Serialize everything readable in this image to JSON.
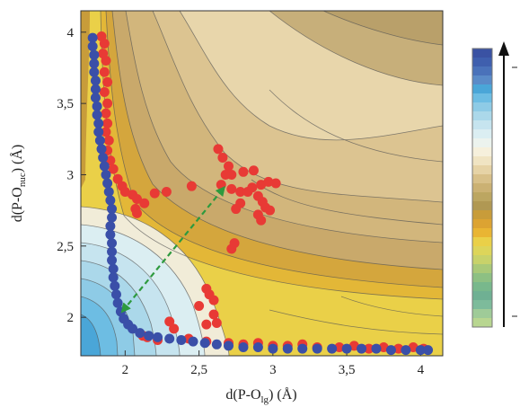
{
  "chart_data": {
    "type": "scatter",
    "title": "",
    "xlabel": "d(P-O",
    "xlabel_sub": "lg",
    "xlabel_suffix": ") (Å)",
    "ylabel": "d(P-O",
    "ylabel_sub": "nuc",
    "ylabel_suffix": ") (Å)",
    "xlim": [
      1.7,
      4.15
    ],
    "ylim": [
      1.73,
      4.15
    ],
    "x_ticks": [
      2,
      2.5,
      3,
      3.5,
      4
    ],
    "x_tick_labels": [
      "2",
      "2,5",
      "3",
      "3,5",
      "4"
    ],
    "y_ticks": [
      2,
      2.5,
      3,
      3.5,
      4
    ],
    "y_tick_labels": [
      "2",
      "2,5",
      "3",
      "3,5",
      "4"
    ],
    "background": "contour energy surface",
    "colorbar": {
      "colors": [
        "#3a52a3",
        "#3f5fae",
        "#4a72ba",
        "#5a8bc8",
        "#4aa6d8",
        "#6dbde3",
        "#8ecbe6",
        "#abd8ea",
        "#c6e4ef",
        "#dbeef2",
        "#ecf3ee",
        "#f6f0dc",
        "#f0e4c3",
        "#e6d3a6",
        "#d8c089",
        "#cbb173",
        "#bca661",
        "#b09853",
        "#c89c3a",
        "#dca332",
        "#e9b533",
        "#ead048",
        "#ddd55a",
        "#c8d26a",
        "#a9c978",
        "#8dc083",
        "#78b88c",
        "#6fb093",
        "#7dbb9b",
        "#9fcb98",
        "#b8d690"
      ]
    },
    "series": [
      {
        "name": "",
        "color": "#e83a35",
        "points": [
          [
            1.84,
            3.97
          ],
          [
            1.86,
            3.92
          ],
          [
            1.85,
            3.85
          ],
          [
            1.87,
            3.8
          ],
          [
            1.86,
            3.72
          ],
          [
            1.88,
            3.65
          ],
          [
            1.86,
            3.58
          ],
          [
            1.88,
            3.5
          ],
          [
            1.87,
            3.43
          ],
          [
            1.88,
            3.36
          ],
          [
            1.87,
            3.3
          ],
          [
            1.89,
            3.24
          ],
          [
            1.88,
            3.17
          ],
          [
            1.9,
            3.1
          ],
          [
            1.92,
            3.04
          ],
          [
            1.95,
            2.97
          ],
          [
            1.98,
            2.92
          ],
          [
            2.0,
            2.88
          ],
          [
            2.05,
            2.86
          ],
          [
            2.08,
            2.83
          ],
          [
            2.13,
            2.8
          ],
          [
            2.07,
            2.76
          ],
          [
            2.08,
            2.73
          ],
          [
            2.2,
            2.87
          ],
          [
            2.28,
            2.88
          ],
          [
            2.45,
            2.92
          ],
          [
            2.63,
            3.18
          ],
          [
            2.66,
            3.12
          ],
          [
            2.7,
            3.06
          ],
          [
            2.68,
            3.0
          ],
          [
            2.72,
            3.0
          ],
          [
            2.8,
            3.02
          ],
          [
            2.87,
            3.03
          ],
          [
            2.65,
            2.93
          ],
          [
            2.72,
            2.9
          ],
          [
            2.78,
            2.88
          ],
          [
            2.83,
            2.88
          ],
          [
            2.86,
            2.91
          ],
          [
            2.92,
            2.93
          ],
          [
            2.97,
            2.95
          ],
          [
            3.02,
            2.94
          ],
          [
            2.9,
            2.85
          ],
          [
            2.93,
            2.81
          ],
          [
            2.95,
            2.77
          ],
          [
            2.98,
            2.75
          ],
          [
            2.9,
            2.72
          ],
          [
            2.92,
            2.68
          ],
          [
            2.78,
            2.8
          ],
          [
            2.75,
            2.76
          ],
          [
            2.72,
            2.48
          ],
          [
            2.74,
            2.52
          ],
          [
            2.55,
            2.2
          ],
          [
            2.57,
            2.16
          ],
          [
            2.6,
            2.12
          ],
          [
            2.5,
            2.08
          ],
          [
            2.6,
            2.02
          ],
          [
            2.62,
            1.96
          ],
          [
            2.55,
            1.95
          ],
          [
            2.3,
            1.97
          ],
          [
            2.33,
            1.92
          ],
          [
            2.43,
            1.85
          ],
          [
            2.55,
            1.83
          ],
          [
            2.7,
            1.82
          ],
          [
            2.8,
            1.81
          ],
          [
            2.9,
            1.82
          ],
          [
            3.0,
            1.8
          ],
          [
            3.1,
            1.8
          ],
          [
            3.2,
            1.81
          ],
          [
            3.3,
            1.79
          ],
          [
            3.45,
            1.79
          ],
          [
            3.55,
            1.8
          ],
          [
            3.65,
            1.78
          ],
          [
            3.75,
            1.79
          ],
          [
            3.85,
            1.78
          ],
          [
            3.95,
            1.79
          ],
          [
            4.02,
            1.78
          ],
          [
            2.22,
            1.84
          ],
          [
            2.12,
            1.87
          ],
          [
            2.15,
            1.86
          ]
        ]
      },
      {
        "name": "",
        "color": "#3a4fa8",
        "points": [
          [
            1.78,
            3.96
          ],
          [
            1.78,
            3.9
          ],
          [
            1.79,
            3.84
          ],
          [
            1.79,
            3.78
          ],
          [
            1.79,
            3.72
          ],
          [
            1.8,
            3.66
          ],
          [
            1.8,
            3.6
          ],
          [
            1.8,
            3.54
          ],
          [
            1.81,
            3.48
          ],
          [
            1.81,
            3.42
          ],
          [
            1.82,
            3.36
          ],
          [
            1.82,
            3.3
          ],
          [
            1.83,
            3.24
          ],
          [
            1.84,
            3.18
          ],
          [
            1.85,
            3.12
          ],
          [
            1.86,
            3.06
          ],
          [
            1.87,
            3.0
          ],
          [
            1.88,
            2.94
          ],
          [
            1.89,
            2.88
          ],
          [
            1.9,
            2.82
          ],
          [
            1.91,
            2.76
          ],
          [
            1.91,
            2.7
          ],
          [
            1.9,
            2.64
          ],
          [
            1.9,
            2.58
          ],
          [
            1.91,
            2.52
          ],
          [
            1.91,
            2.46
          ],
          [
            1.91,
            2.4
          ],
          [
            1.92,
            2.34
          ],
          [
            1.92,
            2.28
          ],
          [
            1.93,
            2.22
          ],
          [
            1.94,
            2.16
          ],
          [
            1.95,
            2.1
          ],
          [
            1.97,
            2.04
          ],
          [
            1.99,
            1.99
          ],
          [
            2.02,
            1.95
          ],
          [
            2.05,
            1.92
          ],
          [
            2.1,
            1.89
          ],
          [
            2.16,
            1.87
          ],
          [
            2.22,
            1.86
          ],
          [
            2.3,
            1.85
          ],
          [
            2.38,
            1.84
          ],
          [
            2.46,
            1.83
          ],
          [
            2.54,
            1.82
          ],
          [
            2.62,
            1.81
          ],
          [
            2.7,
            1.8
          ],
          [
            2.8,
            1.79
          ],
          [
            2.9,
            1.79
          ],
          [
            3.0,
            1.78
          ],
          [
            3.1,
            1.78
          ],
          [
            3.2,
            1.78
          ],
          [
            3.3,
            1.78
          ],
          [
            3.4,
            1.78
          ],
          [
            3.5,
            1.78
          ],
          [
            3.6,
            1.78
          ],
          [
            3.7,
            1.78
          ],
          [
            3.8,
            1.77
          ],
          [
            3.9,
            1.77
          ],
          [
            4.0,
            1.77
          ],
          [
            4.05,
            1.77
          ]
        ]
      }
    ],
    "annotation": {
      "type": "double-arrow",
      "from": [
        1.98,
        2.04
      ],
      "to": [
        2.67,
        2.91
      ],
      "color": "#2e9a3e"
    }
  }
}
